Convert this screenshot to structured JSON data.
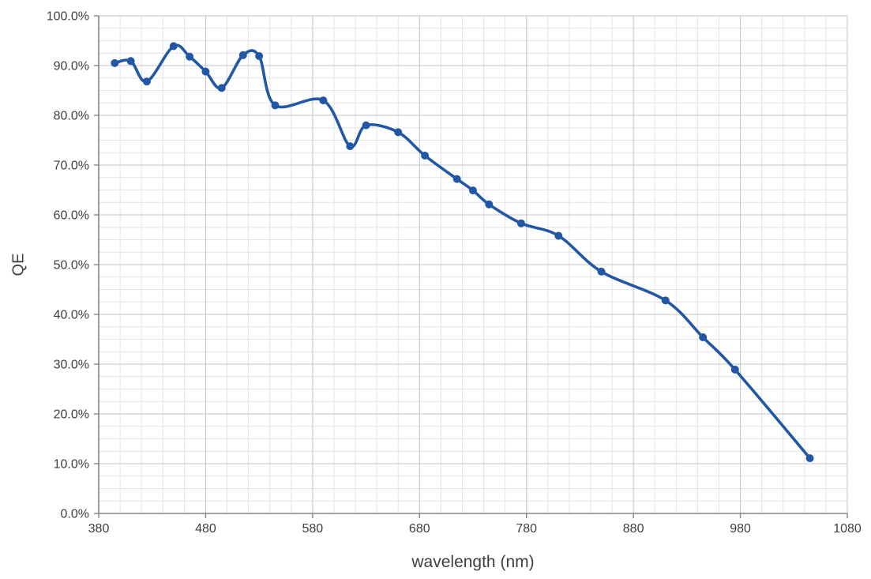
{
  "chart_data": {
    "type": "line",
    "title": "",
    "xlabel": "wavelength (nm)",
    "ylabel": "QE",
    "xlim": [
      380,
      1080
    ],
    "ylim_percent": [
      0,
      100
    ],
    "x_major_tick_step": 100,
    "x_minor_tick_step": 20,
    "y_major_tick_step_percent": 10,
    "y_minor_tick_step_percent": 2.5,
    "x_tick_labels": [
      "380",
      "480",
      "580",
      "680",
      "780",
      "880",
      "980",
      "1080"
    ],
    "y_tick_labels": [
      "0.0%",
      "10.0%",
      "20.0%",
      "30.0%",
      "40.0%",
      "50.0%",
      "60.0%",
      "70.0%",
      "80.0%",
      "90.0%",
      "100.0%"
    ],
    "grid": {
      "major": true,
      "minor": true
    },
    "legend_position": "none",
    "smoothed_line": true,
    "series": [
      {
        "name": "QE",
        "x": [
          395,
          410,
          425,
          450,
          465,
          480,
          495,
          515,
          530,
          545,
          590,
          615,
          630,
          660,
          685,
          715,
          730,
          745,
          775,
          810,
          850,
          910,
          945,
          975,
          1045
        ],
        "y_percent": [
          90.5,
          90.9,
          86.8,
          93.9,
          91.8,
          88.8,
          85.5,
          92.1,
          91.9,
          82.0,
          83.0,
          73.8,
          78.0,
          76.6,
          71.9,
          67.2,
          64.9,
          62.1,
          58.3,
          55.8,
          48.6,
          42.8,
          35.4,
          28.9,
          11.1
        ]
      }
    ]
  },
  "colors": {
    "series_line": "#2157A4",
    "major_grid": "#C3C3C3",
    "minor_grid": "#E4E4E4",
    "axis_line": "#848484",
    "tick_label": "#3F3F3F",
    "axis_title": "#3F3F3F",
    "background": "#FFFFFF"
  }
}
